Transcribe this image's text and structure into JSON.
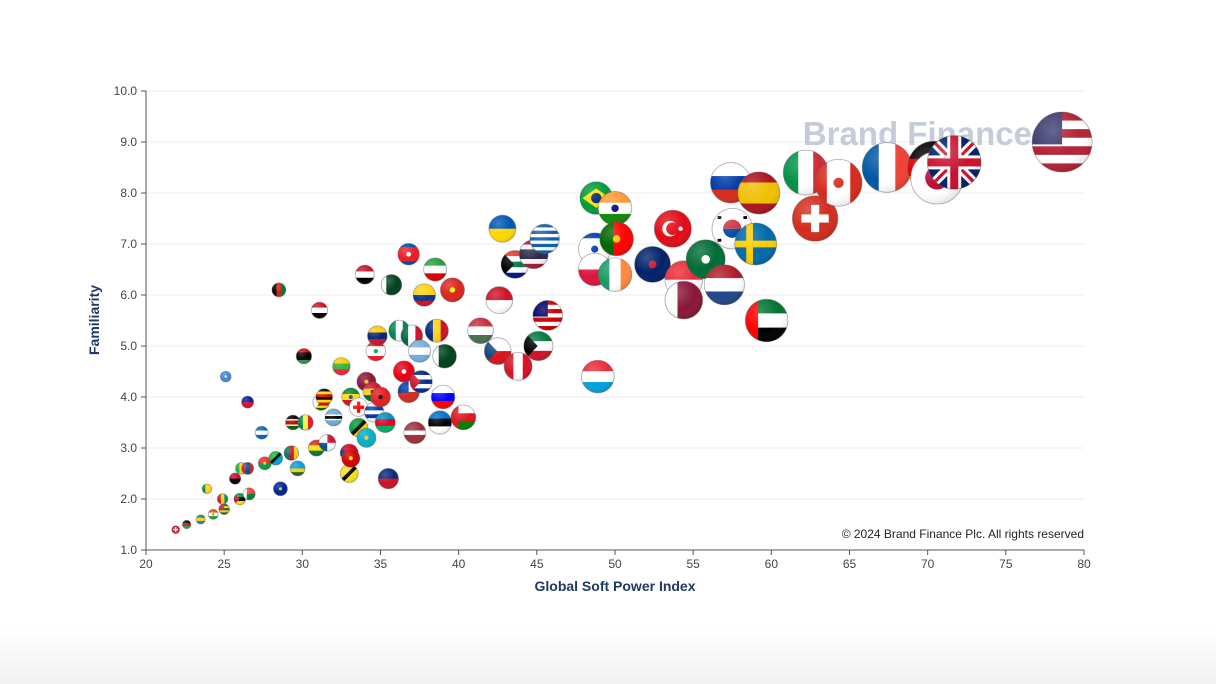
{
  "chart_data": {
    "type": "scatter",
    "xlabel": "Global Soft Power Index",
    "ylabel": "Familiarity",
    "xlim": [
      20,
      80
    ],
    "ylim": [
      1.0,
      10.0
    ],
    "x_ticks": [
      "20",
      "25",
      "30",
      "35",
      "40",
      "45",
      "50",
      "55",
      "60",
      "65",
      "70",
      "75",
      "80"
    ],
    "y_ticks": [
      "1.0",
      "2.0",
      "3.0",
      "4.0",
      "5.0",
      "6.0",
      "7.0",
      "8.0",
      "9.0",
      "10.0"
    ],
    "grid": "horizontal",
    "watermark": "Brand Finance",
    "copyright": "© 2024 Brand Finance Plc. All rights reserved",
    "colors": {
      "axis_title": "#1f3864",
      "grid": "#ececec",
      "axis": "#555555"
    },
    "points": [
      {
        "flag": "usa",
        "x": 78.6,
        "y": 9.0
      },
      {
        "flag": "uk",
        "x": 71.7,
        "y": 8.6
      },
      {
        "flag": "germany",
        "x": 70.4,
        "y": 8.5
      },
      {
        "flag": "japan",
        "x": 70.6,
        "y": 8.3
      },
      {
        "flag": "france",
        "x": 67.4,
        "y": 8.5
      },
      {
        "flag": "canada",
        "x": 64.3,
        "y": 8.2
      },
      {
        "flag": "italy",
        "x": 62.2,
        "y": 8.4
      },
      {
        "flag": "switzerland",
        "x": 62.8,
        "y": 7.5
      },
      {
        "flag": "russia",
        "x": 57.4,
        "y": 8.2
      },
      {
        "flag": "spain",
        "x": 59.2,
        "y": 8.0
      },
      {
        "flag": "uae",
        "x": 59.7,
        "y": 5.5
      },
      {
        "flag": "sweden",
        "x": 59.0,
        "y": 7.0
      },
      {
        "flag": "korea",
        "x": 57.5,
        "y": 7.3
      },
      {
        "flag": "netherlands",
        "x": 57.0,
        "y": 6.2
      },
      {
        "flag": "saudi",
        "x": 55.8,
        "y": 6.7
      },
      {
        "flag": "turkey",
        "x": 53.7,
        "y": 7.3
      },
      {
        "flag": "singapore",
        "x": 54.4,
        "y": 6.3
      },
      {
        "flag": "qatar",
        "x": 54.4,
        "y": 5.9
      },
      {
        "flag": "newzealand",
        "x": 52.4,
        "y": 6.6
      },
      {
        "flag": "brazil",
        "x": 48.8,
        "y": 7.9
      },
      {
        "flag": "india",
        "x": 50.0,
        "y": 7.7
      },
      {
        "flag": "portugal",
        "x": 50.1,
        "y": 7.1
      },
      {
        "flag": "israel",
        "x": 48.7,
        "y": 6.9
      },
      {
        "flag": "ireland",
        "x": 50.0,
        "y": 6.4
      },
      {
        "flag": "poland",
        "x": 48.7,
        "y": 6.5
      },
      {
        "flag": "luxembourg",
        "x": 48.9,
        "y": 4.4
      },
      {
        "flag": "ukraine",
        "x": 42.8,
        "y": 7.3
      },
      {
        "flag": "greece",
        "x": 45.5,
        "y": 7.1
      },
      {
        "flag": "thailand",
        "x": 44.8,
        "y": 6.8
      },
      {
        "flag": "southafrica",
        "x": 43.6,
        "y": 6.6
      },
      {
        "flag": "malaysia",
        "x": 45.7,
        "y": 5.6
      },
      {
        "flag": "kuwait",
        "x": 45.1,
        "y": 5.0
      },
      {
        "flag": "indonesia",
        "x": 42.6,
        "y": 5.9
      },
      {
        "flag": "czech",
        "x": 42.5,
        "y": 4.9
      },
      {
        "flag": "peru",
        "x": 43.8,
        "y": 4.6
      },
      {
        "flag": "hungary",
        "x": 41.4,
        "y": 5.3
      },
      {
        "flag": "vietnam",
        "x": 39.6,
        "y": 6.1
      },
      {
        "flag": "iran",
        "x": 38.5,
        "y": 6.5
      },
      {
        "flag": "northkorea",
        "x": 36.8,
        "y": 6.8
      },
      {
        "flag": "colombia",
        "x": 37.8,
        "y": 6.0
      },
      {
        "flag": "pakistan",
        "x": 35.7,
        "y": 6.2
      },
      {
        "flag": "iraq",
        "x": 34.0,
        "y": 6.4
      },
      {
        "flag": "syria",
        "x": 31.1,
        "y": 5.7
      },
      {
        "flag": "afghanistan",
        "x": 28.5,
        "y": 6.1
      },
      {
        "flag": "romania",
        "x": 38.6,
        "y": 5.3
      },
      {
        "flag": "venezuela",
        "x": 34.8,
        "y": 5.2
      },
      {
        "flag": "nigeria",
        "x": 36.2,
        "y": 5.3
      },
      {
        "flag": "mexico",
        "x": 37.0,
        "y": 5.2
      },
      {
        "flag": "pakistan",
        "x": 39.1,
        "y": 4.8
      },
      {
        "flag": "argentina",
        "x": 37.5,
        "y": 4.9
      },
      {
        "flag": "libya",
        "x": 30.1,
        "y": 4.8
      },
      {
        "flag": "lebanon",
        "x": 34.7,
        "y": 4.9
      },
      {
        "flag": "tunisia",
        "x": 36.5,
        "y": 4.5
      },
      {
        "flag": "cuba",
        "x": 37.6,
        "y": 4.3
      },
      {
        "flag": "slovenia",
        "x": 39.0,
        "y": 4.0
      },
      {
        "flag": "oman",
        "x": 40.3,
        "y": 3.6
      },
      {
        "flag": "estonia",
        "x": 38.8,
        "y": 3.5
      },
      {
        "flag": "latvia",
        "x": 37.2,
        "y": 3.3
      },
      {
        "flag": "somalia",
        "x": 25.1,
        "y": 4.4
      },
      {
        "flag": "haiti",
        "x": 26.5,
        "y": 3.9
      },
      {
        "flag": "ghana",
        "x": 34.5,
        "y": 4.1
      },
      {
        "flag": "ethiopia",
        "x": 33.1,
        "y": 4.0
      },
      {
        "flag": "azerbaijan",
        "x": 35.3,
        "y": 3.5
      },
      {
        "flag": "zimbabwe",
        "x": 31.2,
        "y": 3.9
      },
      {
        "flag": "kenya",
        "x": 29.4,
        "y": 3.5
      },
      {
        "flag": "jamaica",
        "x": 33.6,
        "y": 3.4
      },
      {
        "flag": "macedonia",
        "x": 33.1,
        "y": 2.8
      },
      {
        "flag": "nicaragua",
        "x": 27.4,
        "y": 3.3
      },
      {
        "flag": "liechtenstein",
        "x": 35.5,
        "y": 2.4
      },
      {
        "flag": "brunei",
        "x": 33.0,
        "y": 2.5
      },
      {
        "flag": "bolivia",
        "x": 30.9,
        "y": 3.0
      },
      {
        "flag": "cameroon",
        "x": 29.3,
        "y": 2.9
      },
      {
        "flag": "tanzania",
        "x": 28.3,
        "y": 2.8
      },
      {
        "flag": "mongolia",
        "x": 26.5,
        "y": 2.6
      },
      {
        "flag": "bosnia",
        "x": 28.6,
        "y": 2.2
      },
      {
        "flag": "mozambique",
        "x": 26.0,
        "y": 2.0
      },
      {
        "flag": "benin",
        "x": 23.9,
        "y": 2.2
      },
      {
        "flag": "togo",
        "x": 25.0,
        "y": 1.8
      },
      {
        "flag": "malawi",
        "x": 22.6,
        "y": 1.5
      },
      {
        "flag": "gabon",
        "x": 23.5,
        "y": 1.6
      },
      {
        "flag": "burundi",
        "x": 21.9,
        "y": 1.4
      },
      {
        "flag": "botswana",
        "x": 32.0,
        "y": 3.6
      },
      {
        "flag": "kazakhstan",
        "x": 34.1,
        "y": 3.2
      },
      {
        "flag": "srilanka",
        "x": 34.1,
        "y": 4.3
      },
      {
        "flag": "senegal",
        "x": 30.2,
        "y": 3.5
      },
      {
        "flag": "uganda",
        "x": 31.4,
        "y": 4.0
      },
      {
        "flag": "myanmar",
        "x": 32.5,
        "y": 4.6
      },
      {
        "flag": "angola",
        "x": 25.7,
        "y": 2.4
      },
      {
        "flag": "burkina",
        "x": 27.6,
        "y": 2.7
      },
      {
        "flag": "mali",
        "x": 26.1,
        "y": 2.6
      },
      {
        "flag": "georgia",
        "x": 33.6,
        "y": 3.8
      },
      {
        "flag": "armenia",
        "x": 33.0,
        "y": 2.9
      },
      {
        "flag": "albania",
        "x": 35.0,
        "y": 4.0
      },
      {
        "flag": "uruguay",
        "x": 34.6,
        "y": 3.7
      },
      {
        "flag": "chile",
        "x": 36.8,
        "y": 4.1
      },
      {
        "flag": "panama",
        "x": 31.6,
        "y": 3.1
      },
      {
        "flag": "rwanda",
        "x": 29.7,
        "y": 2.6
      },
      {
        "flag": "guinea",
        "x": 24.9,
        "y": 2.0
      },
      {
        "flag": "madagascar",
        "x": 26.6,
        "y": 2.1
      },
      {
        "flag": "niger",
        "x": 24.3,
        "y": 1.7
      }
    ]
  }
}
